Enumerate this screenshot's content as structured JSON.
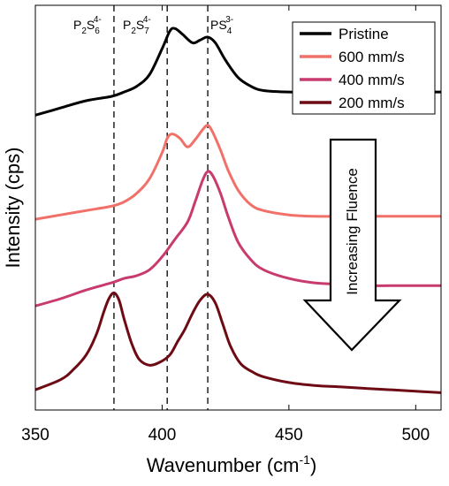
{
  "chart_data": {
    "type": "line",
    "xlabel": "Wavenumber (cm",
    "xlabel_sup": "-1",
    "xlabel_end": ")",
    "ylabel": "Intensity (cps)",
    "xlim": [
      350,
      510
    ],
    "x_ticks": [
      350,
      400,
      450,
      500
    ],
    "grid": false,
    "legend_position": "top-right",
    "vertical_reference_lines": [
      {
        "x": 381,
        "label_parts": [
          "P",
          "2",
          "S",
          "6",
          "4-"
        ]
      },
      {
        "x": 402,
        "label_parts": [
          "P",
          "2",
          "S",
          "7",
          "4-"
        ]
      },
      {
        "x": 418,
        "label_parts": [
          "PS",
          "4",
          "3-"
        ]
      }
    ],
    "series": [
      {
        "name": "Pristine",
        "color": "#000000",
        "x": [
          350,
          360,
          370,
          380,
          385,
          390,
          395,
          400,
          403,
          405,
          408,
          412,
          415,
          418,
          421,
          425,
          430,
          435,
          440,
          450,
          460,
          470,
          480,
          490,
          500,
          510
        ],
        "y": [
          10.2,
          10.45,
          10.7,
          10.85,
          11.0,
          11.2,
          11.6,
          12.5,
          13.1,
          13.2,
          13.0,
          12.7,
          12.8,
          12.9,
          12.7,
          12.1,
          11.5,
          11.2,
          11.05,
          11.0,
          11.0,
          11.0,
          11.0,
          11.0,
          11.0,
          11.0
        ]
      },
      {
        "name": "600 mm/s",
        "color": "#F2706A",
        "x": [
          350,
          360,
          370,
          380,
          385,
          390,
          395,
          400,
          402,
          404,
          407,
          410,
          413,
          416,
          418,
          420,
          423,
          426,
          430,
          435,
          440,
          450,
          460,
          470,
          480,
          490,
          500,
          510
        ],
        "y": [
          6.6,
          6.75,
          6.9,
          7.05,
          7.2,
          7.5,
          8.0,
          8.9,
          9.4,
          9.55,
          9.4,
          9.1,
          9.35,
          9.7,
          9.85,
          9.6,
          9.0,
          8.3,
          7.6,
          7.1,
          6.9,
          6.75,
          6.7,
          6.7,
          6.7,
          6.7,
          6.7,
          6.7
        ]
      },
      {
        "name": "400 mm/s",
        "color": "#C93A6E",
        "x": [
          350,
          360,
          370,
          380,
          385,
          390,
          395,
          400,
          405,
          410,
          413,
          416,
          418,
          420,
          423,
          426,
          430,
          435,
          440,
          450,
          460,
          470,
          480,
          490,
          500,
          510
        ],
        "y": [
          3.6,
          3.85,
          4.15,
          4.4,
          4.55,
          4.65,
          4.85,
          5.3,
          5.9,
          6.5,
          7.2,
          7.95,
          8.25,
          8.1,
          7.5,
          6.7,
          5.8,
          5.2,
          4.85,
          4.55,
          4.4,
          4.35,
          4.3,
          4.3,
          4.3,
          4.3
        ]
      },
      {
        "name": "200 mm/s",
        "color": "#6E0A14",
        "x": [
          350,
          360,
          365,
          370,
          374,
          377,
          379,
          381,
          383,
          385,
          388,
          391,
          395,
          399,
          403,
          406,
          409,
          412,
          415,
          418,
          421,
          424,
          427,
          431,
          436,
          440,
          450,
          460,
          470,
          480,
          490,
          500,
          510
        ],
        "y": [
          0.7,
          1.05,
          1.4,
          1.9,
          2.6,
          3.4,
          3.85,
          4.05,
          3.8,
          3.15,
          2.3,
          1.75,
          1.55,
          1.65,
          1.9,
          2.35,
          2.8,
          3.35,
          3.8,
          4.0,
          3.7,
          2.95,
          2.2,
          1.6,
          1.3,
          1.15,
          0.95,
          0.85,
          0.8,
          0.75,
          0.7,
          0.65,
          0.6
        ]
      }
    ],
    "annotation_arrow": {
      "label": "Increasing Fluence",
      "direction": "down"
    }
  }
}
